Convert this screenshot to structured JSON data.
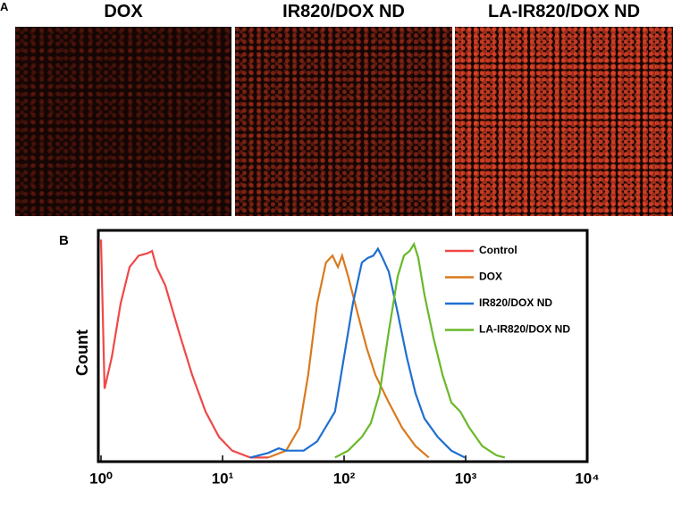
{
  "panel_a": {
    "label": "A",
    "images": [
      {
        "title": "DOX"
      },
      {
        "title": "IR820/DOX ND"
      },
      {
        "title": "LA-IR820/DOX ND"
      }
    ]
  },
  "chart_data": {
    "type": "line",
    "panel_label": "B",
    "y_label": "Count",
    "x_scale": "log",
    "legend": "upper right",
    "xlim": [
      1,
      10000
    ],
    "xticks": [
      {
        "value": 1,
        "label": "10⁰"
      },
      {
        "value": 10,
        "label": "10¹"
      },
      {
        "value": 100,
        "label": "10²"
      },
      {
        "value": 1000,
        "label": "10³"
      },
      {
        "value": 10000,
        "label": "10⁴"
      }
    ],
    "ylim": [
      0,
      100
    ],
    "series": [
      {
        "name": "Control",
        "color": "#f04848",
        "x": [
          1,
          1.07,
          1.23,
          1.45,
          1.72,
          2.04,
          2.41,
          2.63,
          2.86,
          3.38,
          4.36,
          5.62,
          7.25,
          9.35,
          12.0,
          16.9,
          23.7
        ],
        "values": [
          96,
          31,
          45,
          68,
          84,
          89,
          90,
          91,
          84,
          76,
          56,
          37,
          21,
          10,
          4,
          1,
          1
        ]
      },
      {
        "name": "DOX",
        "color": "#d97a1e",
        "x": [
          23.7,
          33.3,
          42.9,
          50.6,
          60.0,
          70.9,
          80.3,
          88.9,
          96.3,
          108,
          129,
          153,
          181,
          233,
          300,
          387,
          498
        ],
        "values": [
          1,
          4,
          14,
          37,
          68,
          86,
          89,
          84,
          89,
          80,
          64,
          49,
          37,
          25,
          14,
          6,
          1
        ]
      },
      {
        "name": "IR820/DOX ND",
        "color": "#1f6fd0",
        "x": [
          16.9,
          23.7,
          29.0,
          33.3,
          46.5,
          60.0,
          84.1,
          100,
          118,
          140,
          157,
          174,
          190,
          207,
          233,
          276,
          327,
          387,
          458,
          589,
          763,
          984
        ],
        "values": [
          1,
          3,
          5,
          4,
          4,
          8,
          21,
          45,
          68,
          86,
          88,
          89,
          92,
          88,
          82,
          64,
          45,
          29,
          18,
          10,
          4,
          1
        ]
      },
      {
        "name": "LA-IR820/DOX ND",
        "color": "#6ab82a",
        "x": [
          84.1,
          108,
          140,
          166,
          196,
          233,
          276,
          311,
          346,
          376,
          408,
          458,
          545,
          646,
          763,
          904,
          1071,
          1369,
          1789,
          2100
        ],
        "values": [
          1,
          4,
          10,
          16,
          29,
          56,
          80,
          89,
          91,
          94,
          88,
          72,
          53,
          37,
          25,
          21,
          14,
          6,
          2,
          1
        ]
      }
    ]
  }
}
